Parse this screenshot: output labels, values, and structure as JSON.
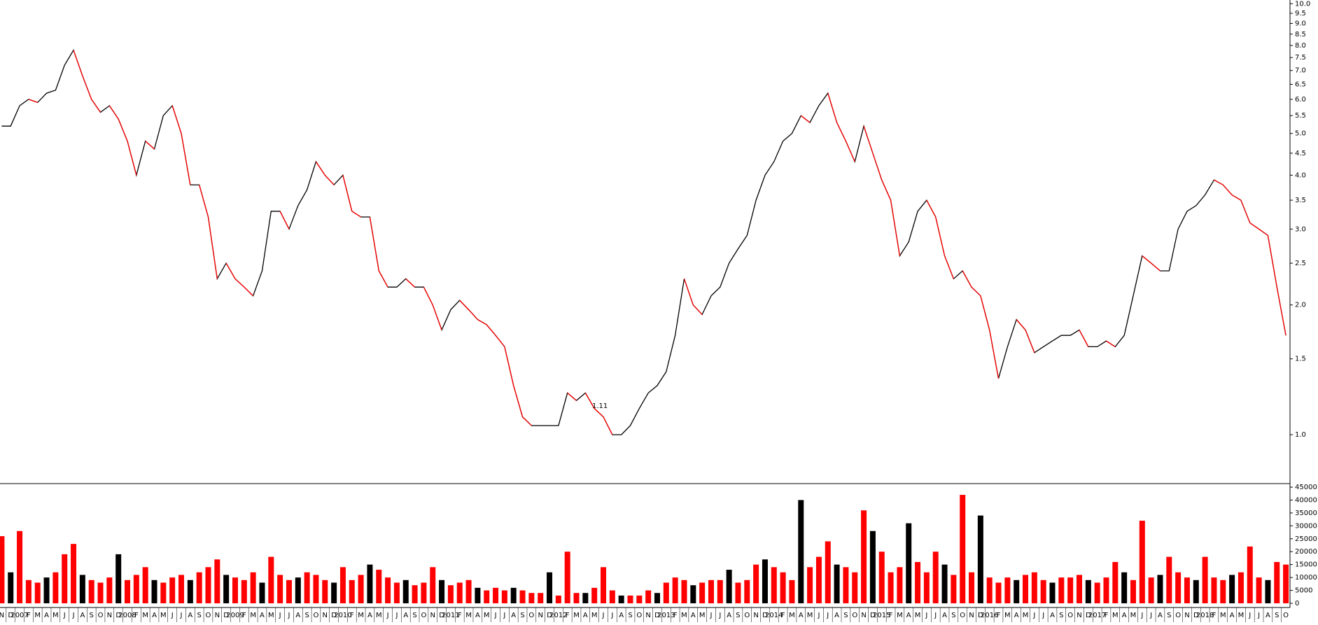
{
  "chart_data": [
    {
      "type": "line",
      "name": "price",
      "color": "#000000",
      "log_scale": true,
      "grid": false,
      "categories": [
        "N",
        "D",
        "2007",
        "F",
        "M",
        "A",
        "M",
        "J",
        "J",
        "A",
        "S",
        "O",
        "N",
        "D",
        "2008",
        "F",
        "M",
        "A",
        "M",
        "J",
        "J",
        "A",
        "S",
        "O",
        "N",
        "D",
        "2009",
        "F",
        "M",
        "A",
        "M",
        "J",
        "J",
        "A",
        "S",
        "O",
        "N",
        "D",
        "2010",
        "F",
        "M",
        "A",
        "M",
        "J",
        "J",
        "A",
        "S",
        "O",
        "N",
        "D",
        "2011",
        "F",
        "M",
        "A",
        "M",
        "J",
        "J",
        "A",
        "S",
        "O",
        "N",
        "D",
        "2012",
        "F",
        "M",
        "A",
        "M",
        "J",
        "J",
        "A",
        "S",
        "O",
        "N",
        "D",
        "2013",
        "F",
        "M",
        "A",
        "M",
        "J",
        "J",
        "A",
        "S",
        "O",
        "N",
        "D",
        "2014",
        "F",
        "M",
        "A",
        "M",
        "J",
        "J",
        "A",
        "S",
        "O",
        "N",
        "D",
        "2015",
        "F",
        "M",
        "A",
        "M",
        "J",
        "J",
        "A",
        "S",
        "O",
        "N",
        "D",
        "2016",
        "F",
        "M",
        "A",
        "M",
        "J",
        "J",
        "A",
        "S",
        "O",
        "N",
        "D",
        "2017",
        "F",
        "M",
        "A",
        "M",
        "J",
        "J",
        "A",
        "S",
        "O",
        "N",
        "D",
        "2018",
        "F",
        "M",
        "A",
        "M",
        "J",
        "J",
        "A",
        "S",
        "O"
      ],
      "values": [
        5.2,
        5.2,
        5.8,
        6.0,
        5.9,
        6.2,
        6.3,
        7.2,
        7.8,
        6.8,
        6.0,
        5.6,
        5.8,
        5.4,
        4.8,
        4.0,
        4.8,
        4.6,
        5.5,
        5.8,
        5.0,
        3.8,
        3.8,
        3.2,
        2.3,
        2.5,
        2.3,
        2.2,
        2.1,
        2.4,
        3.3,
        3.3,
        3.0,
        3.4,
        3.7,
        4.3,
        4.0,
        3.8,
        4.0,
        3.3,
        3.2,
        3.2,
        2.4,
        2.2,
        2.2,
        2.3,
        2.2,
        2.2,
        2.0,
        1.75,
        1.95,
        2.05,
        1.95,
        1.85,
        1.8,
        1.7,
        1.6,
        1.3,
        1.1,
        1.05,
        1.05,
        1.05,
        1.05,
        1.25,
        1.2,
        1.25,
        1.15,
        1.1,
        1.0,
        1.0,
        1.05,
        1.15,
        1.25,
        1.3,
        1.4,
        1.7,
        2.3,
        2.0,
        1.9,
        2.1,
        2.2,
        2.5,
        2.7,
        2.9,
        3.5,
        4.0,
        4.3,
        4.8,
        5.0,
        5.5,
        5.3,
        5.8,
        6.2,
        5.3,
        4.8,
        4.3,
        5.2,
        4.5,
        3.9,
        3.5,
        2.6,
        2.8,
        3.3,
        3.5,
        3.2,
        2.6,
        2.3,
        2.4,
        2.2,
        2.1,
        1.75,
        1.35,
        1.6,
        1.85,
        1.75,
        1.55,
        1.6,
        1.65,
        1.7,
        1.7,
        1.75,
        1.6,
        1.6,
        1.65,
        1.6,
        1.7,
        2.1,
        2.6,
        2.5,
        2.4,
        2.4,
        3.0,
        3.3,
        3.4,
        3.6,
        3.9,
        3.8,
        3.6,
        3.5,
        3.1,
        3.0,
        2.9,
        2.2,
        1.7
      ],
      "ylim": [
        0.77,
        10.2
      ],
      "yticks": [
        {
          "value": 1,
          "label": "1.0"
        },
        {
          "value": 1.5,
          "label": "1.5"
        },
        {
          "value": 2,
          "label": "2.0"
        },
        {
          "value": 2.5,
          "label": "2.5"
        },
        {
          "value": 3,
          "label": "3.0"
        },
        {
          "value": 3.5,
          "label": "3.5"
        },
        {
          "value": 4,
          "label": "4.0"
        },
        {
          "value": 4.5,
          "label": "4.5"
        },
        {
          "value": 5,
          "label": "5.0"
        },
        {
          "value": 5.5,
          "label": "5.5"
        },
        {
          "value": 6,
          "label": "6.0"
        },
        {
          "value": 6.5,
          "label": "6.5"
        },
        {
          "value": 7,
          "label": "7.0"
        },
        {
          "value": 7.5,
          "label": "7.5"
        },
        {
          "value": 8,
          "label": "8.0"
        },
        {
          "value": 8.5,
          "label": "8.5"
        },
        {
          "value": 9,
          "label": "9.0"
        },
        {
          "value": 9.5,
          "label": "9.5"
        },
        {
          "value": 10,
          "label": "10.0"
        }
      ],
      "annotation": "1.11"
    },
    {
      "type": "bar",
      "name": "volume",
      "color": "#ff0000",
      "values": [
        26000,
        12000,
        28000,
        9000,
        8000,
        10000,
        12000,
        19000,
        23000,
        11000,
        9000,
        8000,
        10000,
        19000,
        9000,
        11000,
        14000,
        9000,
        8000,
        10000,
        11000,
        9000,
        12000,
        14000,
        17000,
        11000,
        10000,
        9000,
        12000,
        8000,
        18000,
        11000,
        9000,
        10000,
        12000,
        11000,
        9000,
        8000,
        14000,
        9000,
        11000,
        15000,
        13000,
        10000,
        8000,
        9000,
        7000,
        8000,
        14000,
        9000,
        7000,
        8000,
        9000,
        6000,
        5000,
        6000,
        5000,
        6000,
        5000,
        4000,
        4000,
        12000,
        3000,
        20000,
        4000,
        4000,
        6000,
        14000,
        5000,
        3000,
        3000,
        3000,
        5000,
        4000,
        8000,
        10000,
        9000,
        7000,
        8000,
        9000,
        9000,
        13000,
        8000,
        9000,
        15000,
        17000,
        14000,
        12000,
        9000,
        40000,
        14000,
        18000,
        24000,
        15000,
        14000,
        12000,
        36000,
        28000,
        20000,
        12000,
        14000,
        31000,
        16000,
        12000,
        20000,
        15000,
        11000,
        42000,
        12000,
        34000,
        10000,
        8000,
        10000,
        9000,
        11000,
        12000,
        9000,
        8000,
        10000,
        10000,
        11000,
        9000,
        8000,
        10000,
        16000,
        12000,
        9000,
        32000,
        10000,
        11000,
        18000,
        12000,
        10000,
        9000,
        18000,
        10000,
        9000,
        11000,
        12000,
        22000,
        10000,
        9000,
        16000,
        15000
      ],
      "ylim": [
        0,
        45000
      ],
      "yticks": [
        0,
        5000,
        10000,
        15000,
        20000,
        25000,
        30000,
        35000,
        40000,
        45000
      ]
    }
  ]
}
